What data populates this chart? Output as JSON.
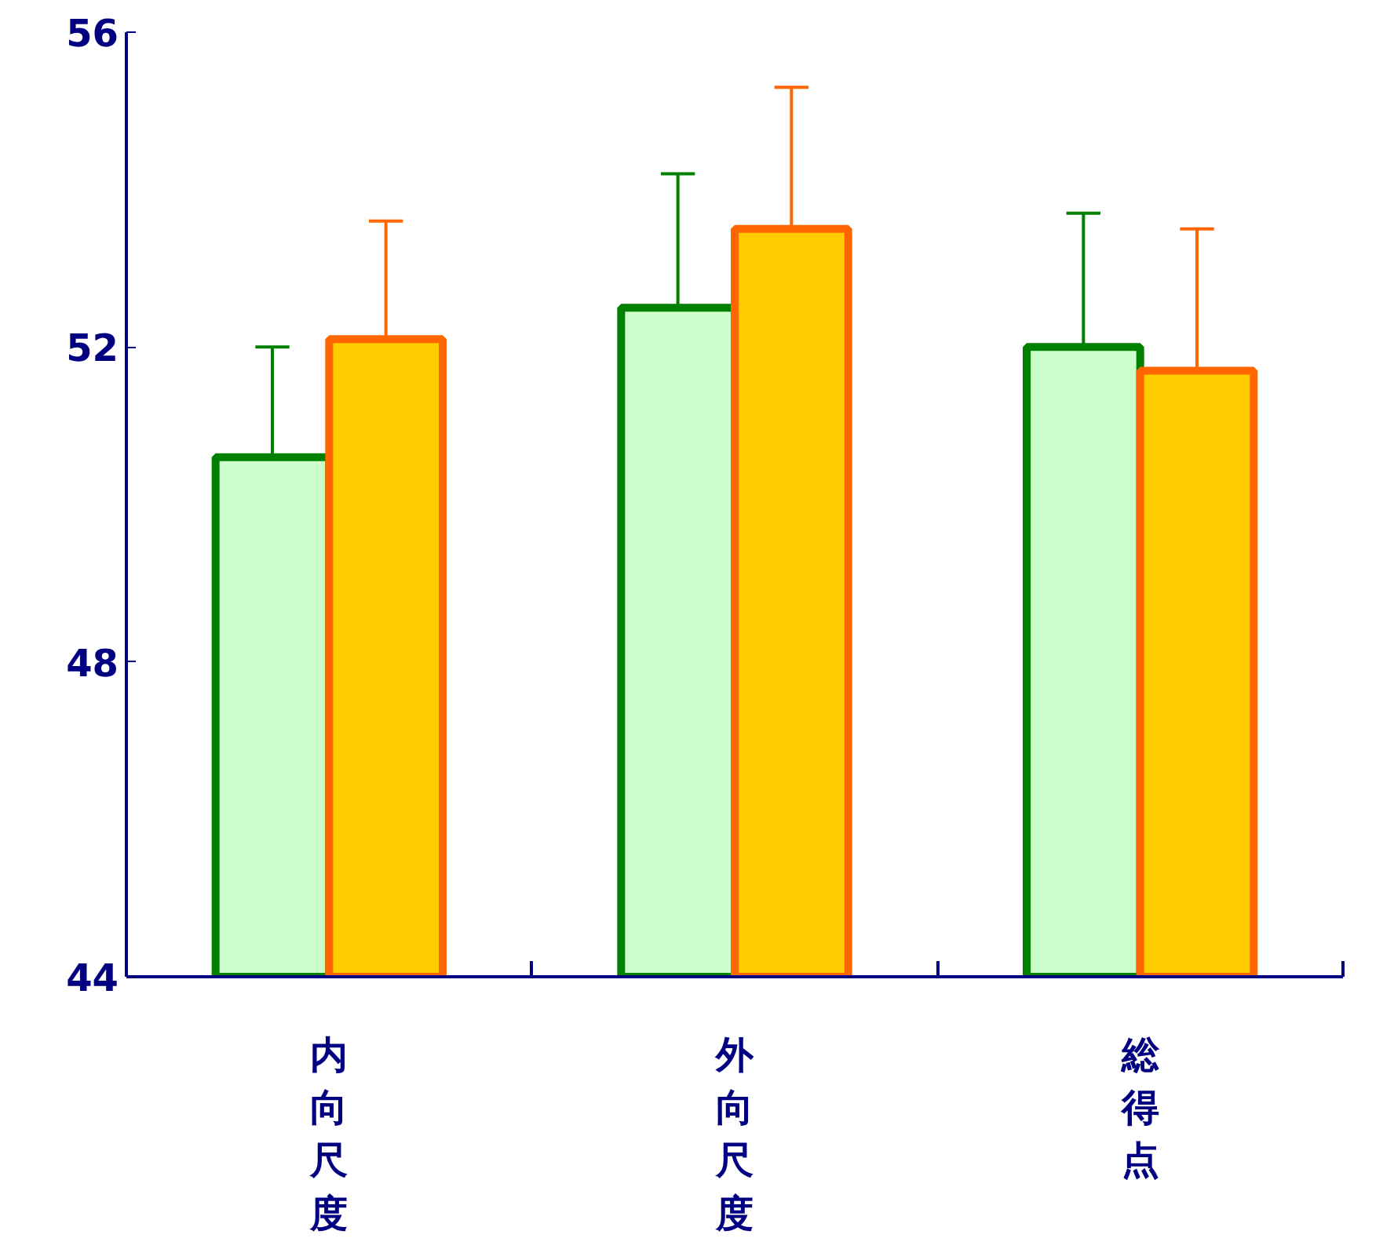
{
  "chart_data": {
    "type": "bar",
    "categories": [
      "内向尺度",
      "外向尺度",
      "総得点"
    ],
    "series": [
      {
        "color": "#ccffcc",
        "values": [
          50.6,
          52.5,
          52.0
        ],
        "errors": [
          [
            50.6,
            52.0
          ],
          [
            52.5,
            54.2
          ],
          [
            52.0,
            53.7
          ]
        ]
      },
      {
        "color": "#ffcc00",
        "values": [
          52.1,
          53.5,
          51.7
        ],
        "errors": [
          [
            52.1,
            53.6
          ],
          [
            53.5,
            55.3
          ],
          [
            51.7,
            53.5
          ]
        ]
      }
    ],
    "ylim": [
      44,
      56
    ],
    "yticks": [
      44,
      48,
      52,
      56
    ],
    "grid": false
  }
}
